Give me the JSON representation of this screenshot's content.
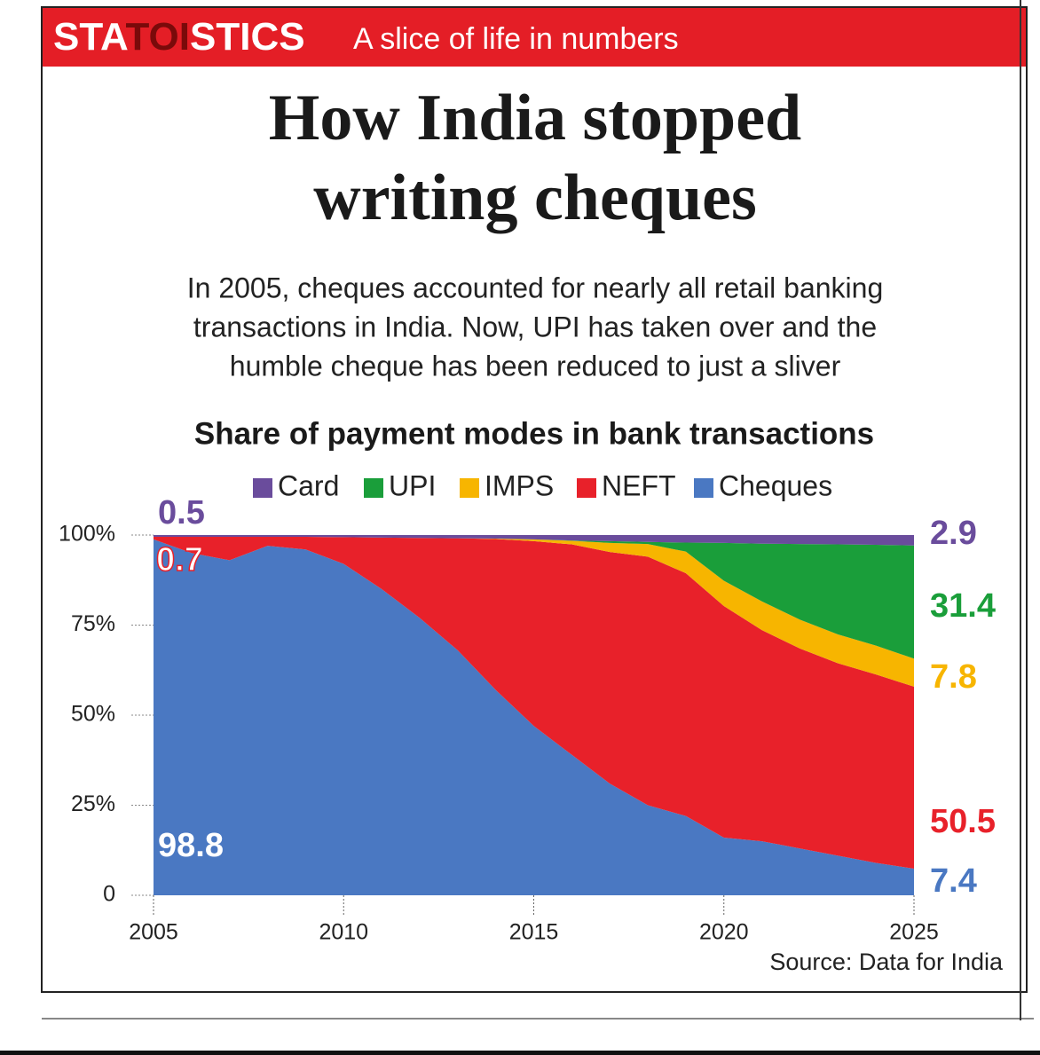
{
  "header": {
    "brand_parts": [
      "STA",
      "TOI",
      "STICS"
    ],
    "tagline": "A slice of life in numbers"
  },
  "title_lines": [
    "How India stopped",
    "writing cheques"
  ],
  "subtitle_lines": [
    "In 2005, cheques accounted for nearly all retail banking",
    "transactions in India. Now, UPI has taken over and the",
    "humble cheque has been reduced to just a sliver"
  ],
  "source": "Source: Data for India",
  "chart_data": {
    "type": "stacked_area",
    "title": "Share of payment modes in bank transactions",
    "x": [
      2005,
      2006,
      2007,
      2008,
      2009,
      2010,
      2011,
      2012,
      2013,
      2014,
      2015,
      2016,
      2017,
      2018,
      2019,
      2020,
      2021,
      2022,
      2023,
      2024,
      2025
    ],
    "series": [
      {
        "name": "Card",
        "color": "#6a4c9c",
        "values": [
          0.5,
          0.5,
          0.5,
          0.5,
          0.5,
          0.6,
          0.7,
          0.8,
          0.9,
          1,
          1.2,
          1.5,
          1.7,
          1.9,
          2.1,
          2.2,
          2.4,
          2.5,
          2.6,
          2.7,
          2.9
        ]
      },
      {
        "name": "UPI",
        "color": "#1a9e3a",
        "values": [
          0,
          0,
          0,
          0,
          0,
          0,
          0,
          0,
          0,
          0,
          0,
          0.1,
          0.5,
          0.6,
          2.5,
          10.5,
          16,
          21,
          25,
          28,
          31.4
        ]
      },
      {
        "name": "IMPS",
        "color": "#f7b500",
        "values": [
          0,
          0,
          0,
          0,
          0,
          0,
          0,
          0,
          0,
          0.1,
          0.5,
          1,
          2.5,
          3.5,
          6,
          7,
          8,
          8,
          8,
          8,
          7.8
        ]
      },
      {
        "name": "NEFT",
        "color": "#e8212a",
        "values": [
          0.7,
          4.5,
          6.5,
          2.5,
          3.5,
          7.4,
          14.3,
          22.2,
          31.1,
          41.9,
          51.3,
          58.4,
          64.3,
          69,
          67.4,
          64.3,
          58.6,
          55.5,
          53.4,
          52.3,
          50.5
        ]
      },
      {
        "name": "Cheques",
        "color": "#4a78c2",
        "values": [
          98.8,
          95,
          93,
          97,
          96,
          92,
          85,
          77,
          68,
          57,
          47,
          39,
          31,
          25,
          22,
          16,
          15,
          13,
          11,
          9,
          7.4
        ]
      }
    ],
    "xlim": [
      2005,
      2025
    ],
    "xticks": [
      2005,
      2010,
      2015,
      2020,
      2025
    ],
    "ylim": [
      0,
      100
    ],
    "yticks": [
      0,
      {
        "value": 25,
        "label": "25%"
      },
      {
        "value": 50,
        "label": "50%"
      },
      {
        "value": 75,
        "label": "75%"
      },
      {
        "value": 100,
        "label": "100%"
      }
    ]
  }
}
